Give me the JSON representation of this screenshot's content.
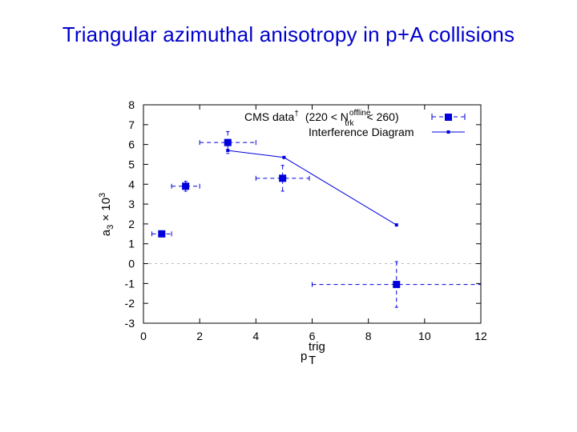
{
  "slide": {
    "title": "Triangular azimuthal anisotropy in p+A collisions"
  },
  "chart_data": {
    "type": "scatter",
    "xlabel": "p",
    "xlabel_sub": "T",
    "xlabel_sup": "trig",
    "ylabel": "a",
    "ylabel_sub": "3",
    "ylabel_rest": " × 10",
    "ylabel_sup": "3",
    "xlim": [
      0,
      12
    ],
    "ylim": [
      -3,
      8
    ],
    "x_ticks": [
      0,
      2,
      4,
      6,
      8,
      10,
      12
    ],
    "y_ticks": [
      -3,
      -2,
      -1,
      0,
      1,
      2,
      3,
      4,
      5,
      6,
      7,
      8
    ],
    "zero_line": true,
    "legend_position": "top-right",
    "series": [
      {
        "name": "CMS data",
        "name_dagger": "†",
        "name_cond_open": "(220 < N",
        "name_cond_sup": "offline",
        "name_cond_sub": "trk",
        "name_cond_close": "< 260)",
        "style": "points-with-errorbars",
        "color": "#0000dd",
        "points": [
          {
            "x": 0.65,
            "y": 1.5,
            "xerr": [
              0.35,
              0.35
            ],
            "yerr": [
              0.1,
              0.1
            ]
          },
          {
            "x": 1.5,
            "y": 3.9,
            "xerr": [
              0.5,
              0.5
            ],
            "yerr": [
              0.25,
              0.25
            ]
          },
          {
            "x": 3.0,
            "y": 6.1,
            "xerr": [
              1.0,
              1.0
            ],
            "yerr": [
              0.55,
              0.55
            ]
          },
          {
            "x": 4.95,
            "y": 4.3,
            "xerr": [
              0.95,
              0.95
            ],
            "yerr": [
              0.65,
              0.65
            ]
          },
          {
            "x": 9.0,
            "y": -1.05,
            "xerr": [
              3.0,
              3.0
            ],
            "yerr": [
              1.15,
              1.15
            ]
          }
        ]
      },
      {
        "name": "Interference Diagram",
        "style": "line-with-points",
        "color": "#0000dd",
        "points": [
          {
            "x": 3.0,
            "y": 5.7
          },
          {
            "x": 5.0,
            "y": 5.35
          },
          {
            "x": 9.0,
            "y": 1.95
          }
        ]
      }
    ]
  }
}
